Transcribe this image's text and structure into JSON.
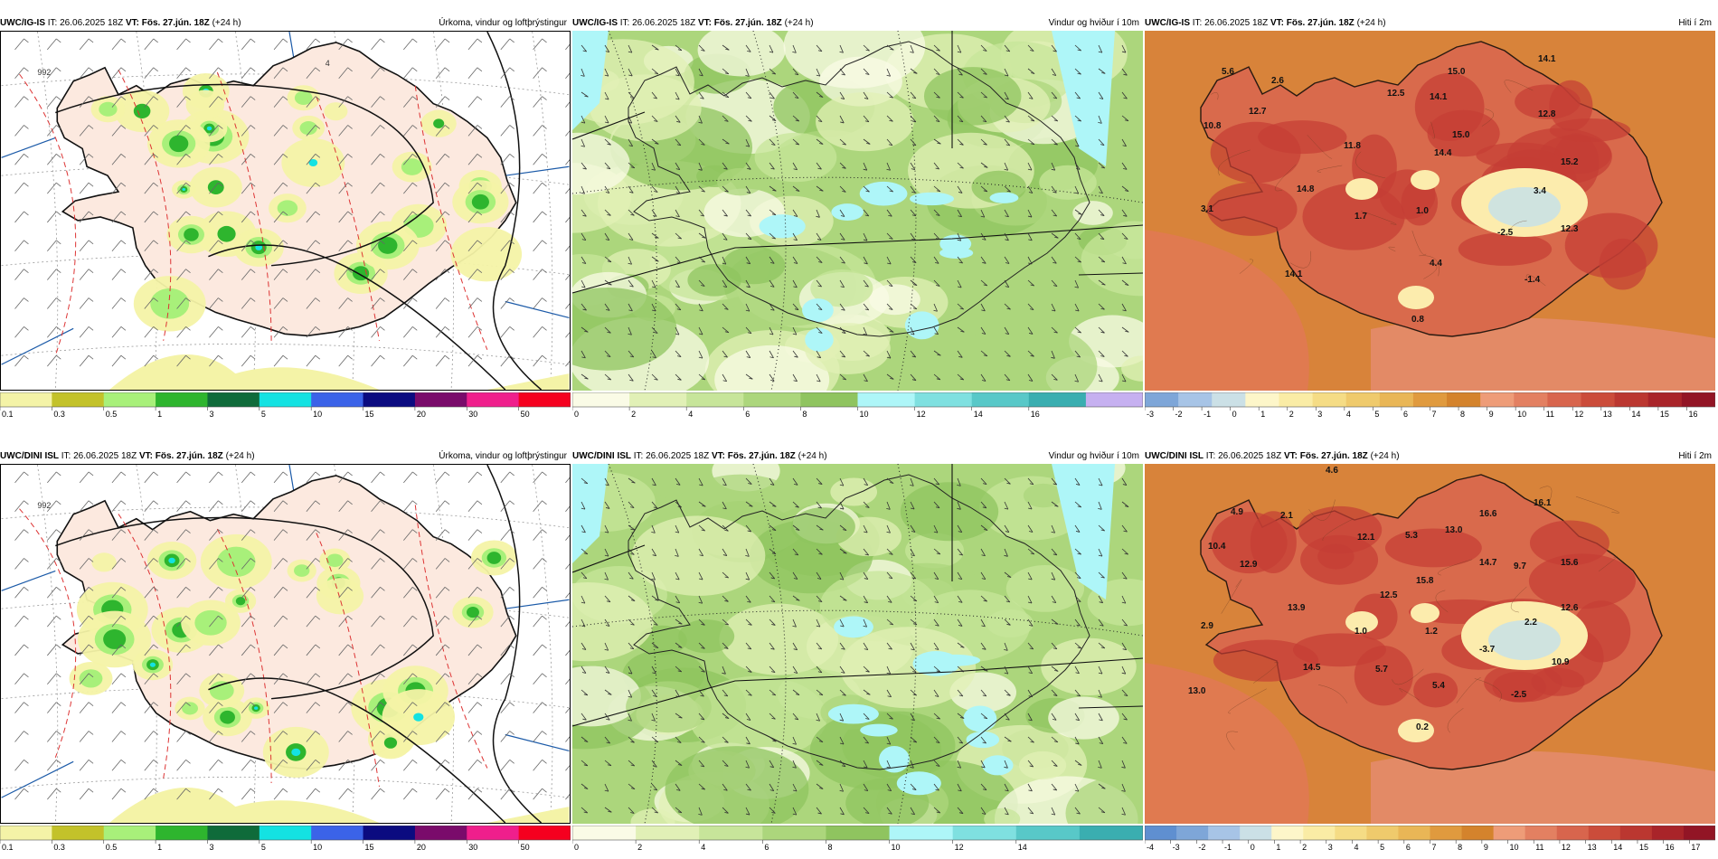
{
  "panels": [
    {
      "id": "igis-precip",
      "model": "UWC/IG-IS",
      "it_label": "IT:",
      "it_value": "26.06.2025 18Z",
      "vt_label": "VT:",
      "vt_value": "Fös. 27.jún. 18Z",
      "lead": "(+24 h)",
      "title": "Úrkoma, vindur og loftþrýstingur",
      "type": "precip",
      "colorbar": {
        "colors": [
          "#f4f3a7",
          "#c3c22a",
          "#a8f07a",
          "#2eb52e",
          "#0f6b3a",
          "#14e2e2",
          "#3b63e8",
          "#0b0b80",
          "#7a0b6b",
          "#ef1f8c",
          "#f5001f"
        ],
        "ticks": [
          "0.1",
          "0.3",
          "0.5",
          "1",
          "3",
          "5",
          "10",
          "15",
          "20",
          "30",
          "50"
        ]
      },
      "isobar_labels": [
        "992",
        "4"
      ]
    },
    {
      "id": "igis-wind",
      "model": "UWC/IG-IS",
      "it_label": "IT:",
      "it_value": "26.06.2025 18Z",
      "vt_label": "VT:",
      "vt_value": "Fös. 27.jún. 18Z",
      "lead": "(+24 h)",
      "title": "Vindur og hviður í 10m",
      "type": "wind",
      "colorbar": {
        "colors": [
          "#fafbe6",
          "#e1f0b6",
          "#c7e59a",
          "#acd67c",
          "#8fc45f",
          "#aef6f8",
          "#7fe0e0",
          "#58c8c8",
          "#3aaeb0",
          "#c6b0f0"
        ],
        "ticks": [
          "0",
          "2",
          "4",
          "6",
          "8",
          "10",
          "12",
          "14",
          "16"
        ]
      }
    },
    {
      "id": "igis-temp",
      "model": "UWC/IG-IS",
      "it_label": "IT:",
      "it_value": "26.06.2025 18Z",
      "vt_label": "VT:",
      "vt_value": "Fös. 27.jún. 18Z",
      "lead": "(+24 h)",
      "title": "Hiti í 2m",
      "type": "temp",
      "colorbar": {
        "colors": [
          "#7ea6d8",
          "#a7c4e6",
          "#cbe0e6",
          "#fdf6c9",
          "#faeca5",
          "#f5dc85",
          "#efca6c",
          "#e9b656",
          "#e09a3e",
          "#d4832c",
          "#ee9c78",
          "#e38061",
          "#d8654d",
          "#cb4c3a",
          "#bb3730",
          "#a92429",
          "#921525"
        ],
        "ticks": [
          "-3",
          "-2",
          "-1",
          "0",
          "1",
          "2",
          "3",
          "4",
          "5",
          "6",
          "7",
          "8",
          "9",
          "10",
          "11",
          "12",
          "13",
          "14",
          "15",
          "16"
        ]
      },
      "labels": [
        "5.6",
        "2.6",
        "15.0",
        "14.1",
        "12.5",
        "14.1",
        "12.7",
        "12.8",
        "10.8",
        "15.0",
        "14.4",
        "11.8",
        "15.2",
        "14.8",
        "3.4",
        "3.1",
        "1.0",
        "1.7",
        "-2.5",
        "12.3",
        "4.4",
        "14.1",
        "-1.4",
        "0.8"
      ]
    },
    {
      "id": "dini-precip",
      "model": "UWC/DINI ISL",
      "it_label": "IT:",
      "it_value": "26.06.2025 18Z",
      "vt_label": "VT:",
      "vt_value": "Fös. 27.jún. 18Z",
      "lead": "(+24 h)",
      "title": "Úrkoma, vindur og loftþrýstingur",
      "type": "precip",
      "colorbar": {
        "colors": [
          "#f4f3a7",
          "#c3c22a",
          "#a8f07a",
          "#2eb52e",
          "#0f6b3a",
          "#14e2e2",
          "#3b63e8",
          "#0b0b80",
          "#7a0b6b",
          "#ef1f8c",
          "#f5001f"
        ],
        "ticks": [
          "0.1",
          "0.3",
          "0.5",
          "1",
          "3",
          "5",
          "10",
          "15",
          "20",
          "30",
          "50"
        ]
      },
      "isobar_labels": [
        "992"
      ]
    },
    {
      "id": "dini-wind",
      "model": "UWC/DINI ISL",
      "it_label": "IT:",
      "it_value": "26.06.2025 18Z",
      "vt_label": "VT:",
      "vt_value": "Fös. 27.jún. 18Z",
      "lead": "(+24 h)",
      "title": "Vindur og hviður í 10m",
      "type": "wind",
      "colorbar": {
        "colors": [
          "#fafbe6",
          "#e1f0b6",
          "#c7e59a",
          "#acd67c",
          "#8fc45f",
          "#aef6f8",
          "#7fe0e0",
          "#58c8c8",
          "#3aaeb0"
        ],
        "ticks": [
          "0",
          "2",
          "4",
          "6",
          "8",
          "10",
          "12",
          "14"
        ]
      }
    },
    {
      "id": "dini-temp",
      "model": "UWC/DINI ISL",
      "it_label": "IT:",
      "it_value": "26.06.2025 18Z",
      "vt_label": "VT:",
      "vt_value": "Fös. 27.jún. 18Z",
      "lead": "(+24 h)",
      "title": "Hiti í 2m",
      "type": "temp",
      "colorbar": {
        "colors": [
          "#5f8fd0",
          "#7ea6d8",
          "#a7c4e6",
          "#cbe0e6",
          "#fdf6c9",
          "#faeca5",
          "#f5dc85",
          "#efca6c",
          "#e9b656",
          "#e09a3e",
          "#d4832c",
          "#ee9c78",
          "#e38061",
          "#d8654d",
          "#cb4c3a",
          "#bb3730",
          "#a92429",
          "#921525"
        ],
        "ticks": [
          "-4",
          "-3",
          "-2",
          "-1",
          "0",
          "1",
          "2",
          "3",
          "4",
          "5",
          "6",
          "7",
          "8",
          "9",
          "10",
          "11",
          "12",
          "13",
          "14",
          "15",
          "16",
          "17"
        ]
      },
      "labels": [
        "4.6",
        "4.9",
        "2.1",
        "16.6",
        "16.1",
        "10.4",
        "12.1",
        "5.3",
        "13.0",
        "12.9",
        "14.7",
        "9.7",
        "15.6",
        "15.8",
        "12.5",
        "13.9",
        "12.6",
        "2.9",
        "1.0",
        "1.2",
        "2.2",
        "-3.7",
        "14.5",
        "5.7",
        "10.9",
        "5.4",
        "-2.5",
        "13.0",
        "0.2"
      ]
    }
  ]
}
